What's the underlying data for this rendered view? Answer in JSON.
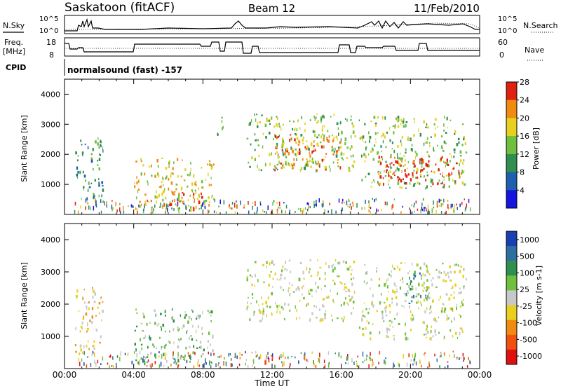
{
  "header": {
    "station": "Saskatoon (fitACF)",
    "beam": "Beam 12",
    "date": "11/Feb/2010"
  },
  "top_panels": {
    "nsky_label": "N.Sky",
    "nsearch_label": "N.Search",
    "log_ticks": [
      "10^5",
      "10^0"
    ],
    "freq_label_1": "Freq.",
    "freq_label_2": "[MHz]",
    "freq_ticks": [
      "18",
      "8"
    ],
    "nave_label": "Nave",
    "nave_ticks": [
      "60",
      "0"
    ],
    "cpid_label": "CPID",
    "cpid_value": "normalsound (fast) -157"
  },
  "chart_data": [
    {
      "type": "heatmap",
      "title": "",
      "xlabel": "",
      "ylabel": "Slant Range [km]",
      "xlim": [
        0,
        24
      ],
      "ylim": [
        0,
        4500
      ],
      "yticks": [
        "1000",
        "2000",
        "3000",
        "4000"
      ],
      "colorbar_label": "Power [dB]",
      "colorbar_ticks": [
        "4",
        "8",
        "12",
        "16",
        "20",
        "24",
        "28"
      ],
      "colors": [
        "#1515e0",
        "#1f5fb0",
        "#2f8f50",
        "#70c040",
        "#e8d020",
        "#f08a10",
        "#e02010"
      ],
      "regions": [
        {
          "x0": 0.6,
          "x1": 2.2,
          "y0": 500,
          "y1": 2600,
          "level": 2
        },
        {
          "x0": 4.0,
          "x1": 8.6,
          "y0": 200,
          "y1": 1900,
          "level": 4
        },
        {
          "x0": 6.0,
          "x1": 8.0,
          "y0": 300,
          "y1": 800,
          "level": 6
        },
        {
          "x0": 8.8,
          "x1": 9.2,
          "y0": 2500,
          "y1": 3300,
          "level": 2
        },
        {
          "x0": 10.5,
          "x1": 16.8,
          "y0": 1500,
          "y1": 3400,
          "level": 3
        },
        {
          "x0": 12.0,
          "x1": 16.0,
          "y0": 1500,
          "y1": 2700,
          "level": 5
        },
        {
          "x0": 17.0,
          "x1": 23.2,
          "y0": 900,
          "y1": 3300,
          "level": 3
        },
        {
          "x0": 18.0,
          "x1": 23.0,
          "y0": 1000,
          "y1": 2000,
          "level": 6
        }
      ]
    },
    {
      "type": "heatmap",
      "title": "",
      "xlabel": "Time UT",
      "ylabel": "Slant Range [km]",
      "xlim": [
        0,
        24
      ],
      "ylim": [
        0,
        4500
      ],
      "xticks": [
        "00:00",
        "04:00",
        "08:00",
        "12:00",
        "16:00",
        "20:00",
        "00:00"
      ],
      "yticks": [
        "1000",
        "2000",
        "3000",
        "4000"
      ],
      "colorbar_label": "Velocity [m s-1]",
      "colorbar_ticks": [
        "1000",
        "500",
        "100",
        "25",
        "-25",
        "-100",
        "-500",
        "-1000"
      ],
      "colors": [
        "#1a3fb0",
        "#2f6fa0",
        "#2f8f50",
        "#70c040",
        "#c8c8c8",
        "#e8d020",
        "#f08a10",
        "#f05010",
        "#e01010"
      ],
      "regions": [
        {
          "x0": 0.6,
          "x1": 2.2,
          "y0": 500,
          "y1": 2600,
          "level": 5
        },
        {
          "x0": 4.0,
          "x1": 8.6,
          "y0": 200,
          "y1": 1900,
          "level": 3
        },
        {
          "x0": 10.5,
          "x1": 16.8,
          "y0": 1500,
          "y1": 3400,
          "level": 4
        },
        {
          "x0": 17.0,
          "x1": 23.2,
          "y0": 900,
          "y1": 3300,
          "level": 4
        },
        {
          "x0": 19.5,
          "x1": 21.0,
          "y0": 2000,
          "y1": 3000,
          "level": 2
        }
      ]
    }
  ]
}
